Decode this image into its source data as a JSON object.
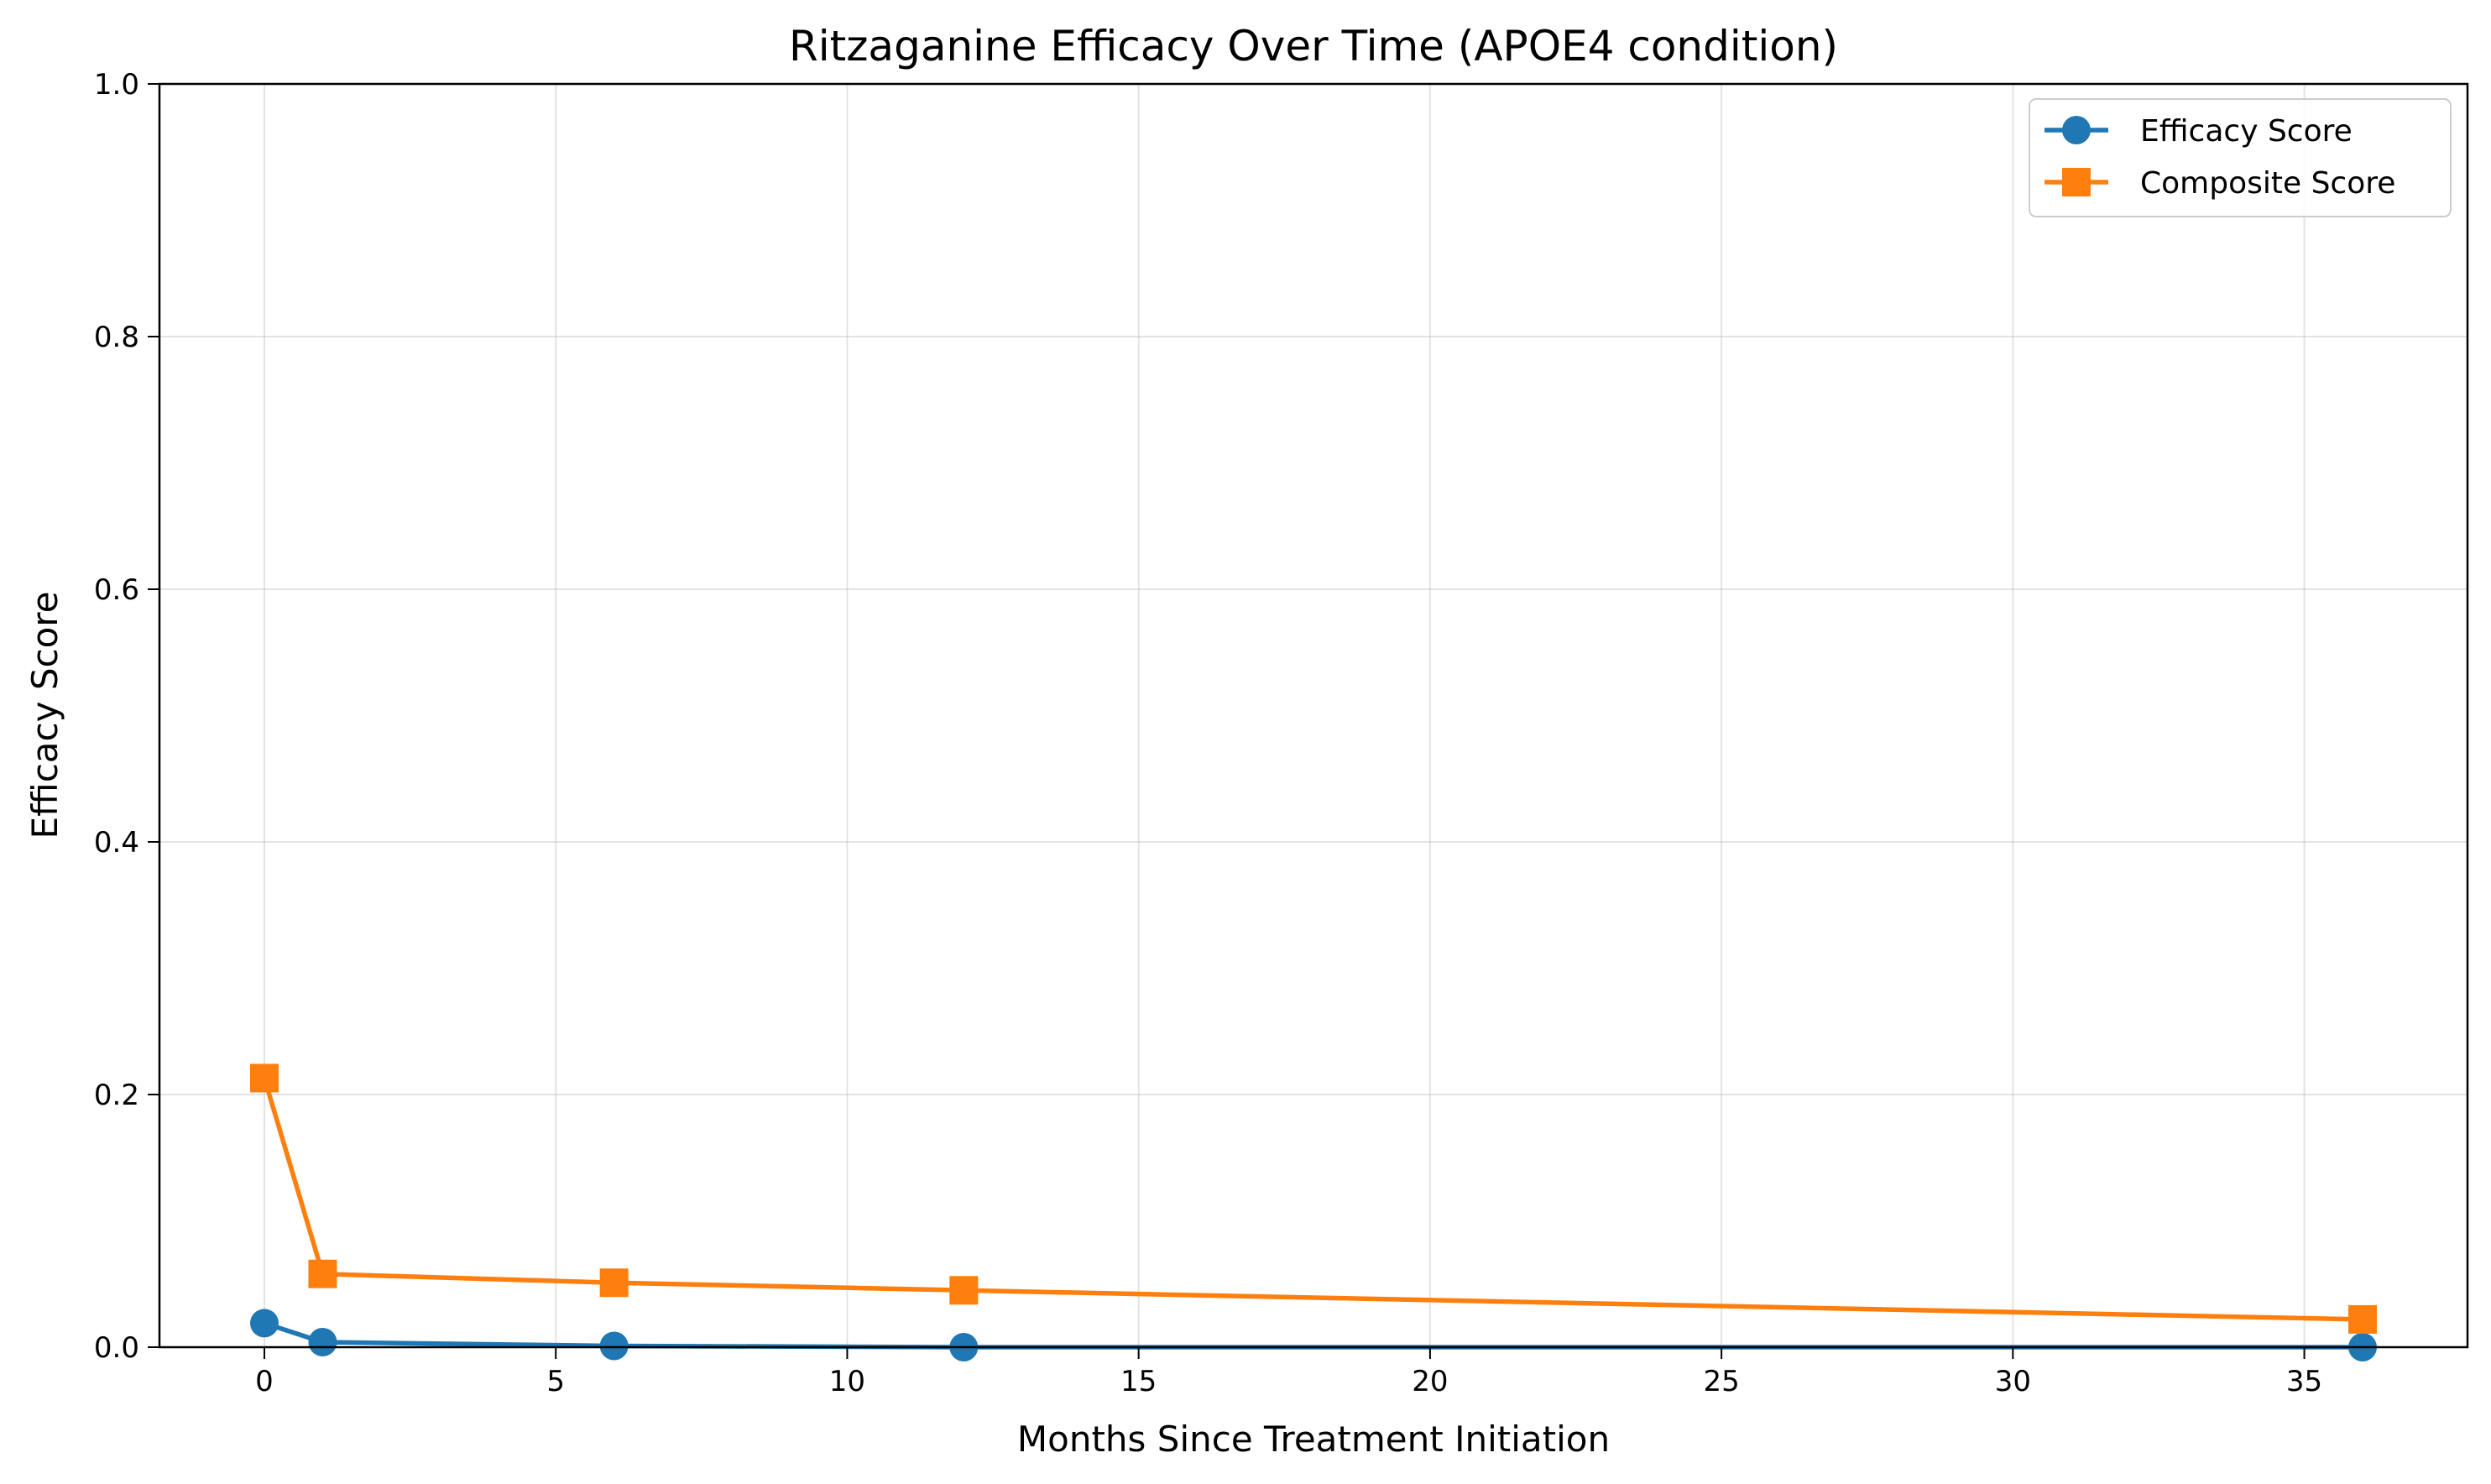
{
  "chart_data": {
    "type": "line",
    "title": "Ritzaganine Efficacy Over Time (APOE4 condition)",
    "xlabel": "Months Since Treatment Initiation",
    "ylabel": "Efficacy Score",
    "xlim": [
      -1.8,
      37.8
    ],
    "ylim": [
      0,
      1.0
    ],
    "xticks": [
      0,
      5,
      10,
      15,
      20,
      25,
      30,
      35
    ],
    "yticks": [
      0.0,
      0.2,
      0.4,
      0.6,
      0.8,
      1.0
    ],
    "xtick_labels": [
      "0",
      "5",
      "10",
      "15",
      "20",
      "25",
      "30",
      "35"
    ],
    "ytick_labels": [
      "0.0",
      "0.2",
      "0.4",
      "0.6",
      "0.8",
      "1.0"
    ],
    "grid": true,
    "legend": "top-right",
    "series": [
      {
        "name": "Efficacy Score",
        "color": "#1f77b4",
        "marker": "circle",
        "points": [
          {
            "x": 0,
            "y": 0.019
          },
          {
            "x": 1,
            "y": 0.004
          },
          {
            "x": 6,
            "y": 0.001
          },
          {
            "x": 12,
            "y": 0.0
          },
          {
            "x": 36,
            "y": 0.0
          }
        ]
      },
      {
        "name": "Composite Score",
        "color": "#ff7f0e",
        "marker": "square",
        "points": [
          {
            "x": 0,
            "y": 0.213
          },
          {
            "x": 1,
            "y": 0.058
          },
          {
            "x": 6,
            "y": 0.051
          },
          {
            "x": 12,
            "y": 0.045
          },
          {
            "x": 36,
            "y": 0.022
          }
        ]
      }
    ]
  }
}
